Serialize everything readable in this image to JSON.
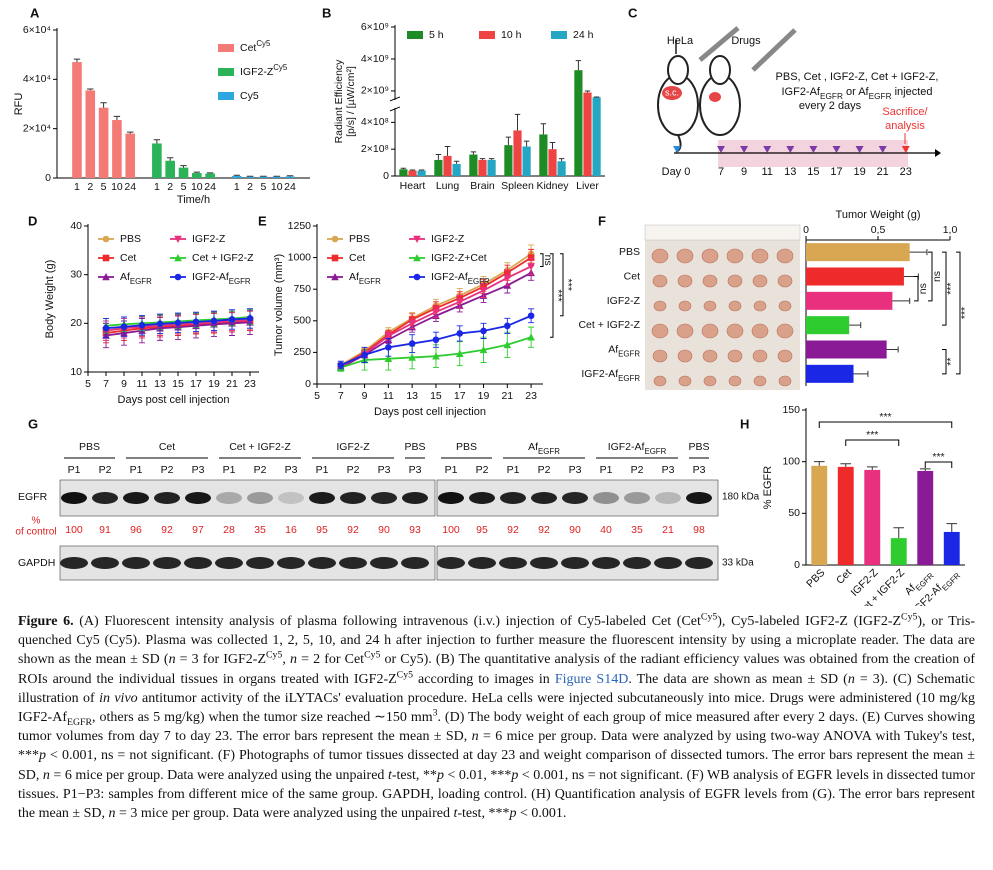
{
  "chart_data": [
    {
      "panel": "A",
      "type": "bar",
      "grouping": "series",
      "y_label": "RFU",
      "x_label": "Time/h",
      "categories": [
        "1",
        "2",
        "5",
        "10",
        "24"
      ],
      "series": [
        {
          "name": "Cet",
          "name_sup": "Cy5",
          "color": "#f47a76",
          "values": [
            47000,
            35500,
            28500,
            23500,
            18000
          ],
          "errors": [
            1200,
            600,
            2000,
            1500,
            600
          ]
        },
        {
          "name": "IGF2-Z",
          "name_sup": "Cy5",
          "color": "#2bb35a",
          "values": [
            14000,
            7000,
            4200,
            2000,
            1800
          ],
          "errors": [
            1500,
            1200,
            800,
            400,
            300
          ]
        },
        {
          "name": "Cy5",
          "color": "#2ea6df",
          "values": [
            800,
            500,
            500,
            500,
            600
          ],
          "errors": [
            300,
            200,
            200,
            200,
            300
          ]
        }
      ],
      "ylim": [
        0,
        60000
      ],
      "yticks": [
        0,
        {
          "value": 20000,
          "label": "2×10⁴"
        },
        {
          "value": 40000,
          "label": "4×10⁴"
        },
        {
          "value": 60000,
          "label": "6×10⁴"
        }
      ],
      "legend": "upper right"
    },
    {
      "panel": "B",
      "type": "bar",
      "grouping": "category",
      "y_label": [
        "Radiant Efficiency",
        "[p/s] / [µW/cm²]"
      ],
      "categories": [
        "Heart",
        "Lung",
        "Brain",
        "Spleen",
        "Kidney",
        "Liver"
      ],
      "series": [
        {
          "name": "5 h",
          "color": "#1e8c24",
          "values": [
            50000000,
            120000000,
            160000000,
            230000000,
            310000000,
            3300000000
          ],
          "errors": [
            8000000,
            40000000,
            20000000,
            60000000,
            80000000,
            600000000
          ]
        },
        {
          "name": "10 h",
          "color": "#ee4444",
          "values": [
            40000000,
            150000000,
            120000000,
            340000000,
            200000000,
            1900000000
          ],
          "errors": [
            5000000,
            70000000,
            10000000,
            120000000,
            50000000,
            100000000
          ]
        },
        {
          "name": "24 h",
          "color": "#25a7c4",
          "values": [
            40000000,
            90000000,
            120000000,
            220000000,
            110000000,
            1600000000
          ],
          "errors": [
            5000000,
            20000000,
            10000000,
            40000000,
            20000000,
            20000000
          ]
        }
      ],
      "ylim": [
        0,
        6000000000
      ],
      "ybreak": [
        500000000,
        1500000000
      ],
      "yticks": [
        0,
        {
          "value": 200000000,
          "label": "2×10⁸"
        },
        {
          "value": 400000000,
          "label": "4×10⁸"
        },
        {
          "value": 2000000000,
          "label": "2×10⁹"
        },
        {
          "value": 4000000000,
          "label": "4×10⁹"
        },
        {
          "value": 6000000000,
          "label": "6×10⁹"
        }
      ],
      "legend": "top"
    },
    {
      "panel": "D",
      "type": "line",
      "x_label": "Days post cell injection",
      "y_label": "Body Weight (g)",
      "x": [
        7,
        9,
        11,
        13,
        15,
        17,
        19,
        21,
        23
      ],
      "xlim": [
        5,
        24
      ],
      "xticks": [
        5,
        7,
        9,
        11,
        13,
        15,
        17,
        19,
        21,
        23
      ],
      "ylim": [
        10,
        40
      ],
      "yticks": [
        10,
        20,
        30,
        40
      ],
      "legend": "upper left",
      "series": [
        {
          "name": "PBS",
          "color": "#d9a752",
          "marker": "circle",
          "values": [
            18.5,
            19,
            19.5,
            19.8,
            20,
            20.2,
            20.5,
            20.5,
            20.8
          ],
          "errors": [
            2,
            2,
            2,
            2,
            2,
            2,
            2,
            2,
            2
          ]
        },
        {
          "name": "Cet",
          "color": "#ee2a2a",
          "marker": "square",
          "values": [
            18,
            18.5,
            19,
            19.2,
            19.5,
            19.8,
            20,
            20.2,
            20.5
          ],
          "errors": [
            2,
            2,
            2,
            2,
            2,
            2,
            2,
            2,
            2
          ]
        },
        {
          "name": "Af",
          "name_sub": "EGFR",
          "color": "#8b1a96",
          "marker": "triangle",
          "values": [
            17.5,
            18,
            18.5,
            19,
            19.2,
            19.5,
            19.8,
            20,
            20.2
          ],
          "errors": [
            2.5,
            2.5,
            2.5,
            2.5,
            2.5,
            2.5,
            2.5,
            2.5,
            2.5
          ]
        },
        {
          "name": "IGF2-Z",
          "color": "#e8307e",
          "marker": "triangle-down",
          "values": [
            18.5,
            19,
            19.3,
            19.5,
            19.8,
            20,
            20.2,
            20.5,
            20.6
          ],
          "errors": [
            2,
            2,
            2,
            2,
            2,
            2,
            2,
            2,
            2
          ]
        },
        {
          "name": "Cet + IGF2-Z",
          "color": "#2ecc2e",
          "marker": "triangle",
          "values": [
            19.5,
            19.8,
            20,
            20.2,
            20.4,
            20.6,
            20.8,
            21,
            21.3
          ],
          "errors": [
            1.5,
            1.5,
            1.5,
            1.5,
            1.5,
            1.5,
            1.5,
            1.5,
            1.5
          ]
        },
        {
          "name": "IGF2-Af",
          "name_sub": "EGFR",
          "color": "#1a28e6",
          "marker": "circle",
          "values": [
            19,
            19.3,
            19.6,
            19.9,
            20.1,
            20.3,
            20.5,
            20.8,
            21
          ],
          "errors": [
            2,
            2,
            2,
            2,
            2,
            2,
            2,
            2,
            2
          ]
        }
      ]
    },
    {
      "panel": "E",
      "type": "line",
      "x_label": "Days post cell injection",
      "y_label": "Tumor volume (mm³)",
      "x": [
        7,
        9,
        11,
        13,
        15,
        17,
        19,
        21,
        23
      ],
      "xlim": [
        5,
        24
      ],
      "xticks": [
        5,
        7,
        9,
        11,
        13,
        15,
        17,
        19,
        21,
        23
      ],
      "ylim": [
        0,
        1250
      ],
      "yticks": [
        0,
        250,
        500,
        750,
        1000,
        1250
      ],
      "legend": "upper left",
      "annotations": [
        "ns",
        "***",
        "***"
      ],
      "series": [
        {
          "name": "PBS",
          "color": "#d9a752",
          "marker": "circle",
          "values": [
            150,
            260,
            410,
            520,
            620,
            700,
            790,
            900,
            1030
          ],
          "errors": [
            20,
            25,
            35,
            45,
            50,
            55,
            60,
            60,
            70
          ]
        },
        {
          "name": "Cet",
          "color": "#ee2a2a",
          "marker": "square",
          "values": [
            140,
            250,
            390,
            510,
            600,
            680,
            770,
            880,
            1000
          ],
          "errors": [
            20,
            25,
            35,
            45,
            50,
            50,
            55,
            60,
            65
          ]
        },
        {
          "name": "Af",
          "name_sub": "EGFR",
          "color": "#8b1a96",
          "marker": "triangle",
          "values": [
            130,
            230,
            350,
            450,
            540,
            620,
            700,
            780,
            880
          ],
          "errors": [
            15,
            25,
            30,
            40,
            45,
            50,
            55,
            60,
            60
          ]
        },
        {
          "name": "IGF2-Z",
          "color": "#e8307e",
          "marker": "triangle-down",
          "values": [
            140,
            240,
            380,
            480,
            570,
            650,
            740,
            840,
            930
          ],
          "errors": [
            20,
            25,
            35,
            40,
            45,
            50,
            55,
            60,
            65
          ]
        },
        {
          "name": "IGF2-Z+Cet",
          "color": "#2ecc2e",
          "marker": "triangle",
          "values": [
            130,
            190,
            200,
            210,
            220,
            240,
            270,
            310,
            370
          ],
          "errors": [
            30,
            80,
            90,
            90,
            90,
            95,
            100,
            100,
            80
          ]
        },
        {
          "name": "IGF2-Af",
          "name_sub": "EGFR",
          "color": "#1a28e6",
          "marker": "circle",
          "values": [
            150,
            230,
            290,
            320,
            350,
            400,
            420,
            460,
            540
          ],
          "errors": [
            30,
            60,
            70,
            70,
            60,
            60,
            60,
            60,
            55
          ]
        }
      ]
    },
    {
      "panel": "F",
      "type": "barh",
      "title": "Tumor Weight (g)",
      "categories": [
        "PBS",
        "Cet",
        "IGF2-Z",
        "Cet + IGF2-Z",
        "Af",
        "IGF2-Af"
      ],
      "category_subs": [
        null,
        null,
        null,
        null,
        "EGFR",
        "EGFR"
      ],
      "values": [
        0.72,
        0.68,
        0.6,
        0.3,
        0.56,
        0.33
      ],
      "errors": [
        0.12,
        0.1,
        0.12,
        0.08,
        0.08,
        0.1
      ],
      "colors": [
        "#d9a752",
        "#ee2a2a",
        "#e8307e",
        "#2ecc2e",
        "#8b1a96",
        "#1a28e6"
      ],
      "xlim": [
        0,
        1
      ],
      "xticks": [
        0,
        {
          "value": 0.5,
          "label": "0,5"
        },
        {
          "value": 1,
          "label": "1,0"
        }
      ],
      "annotations": [
        "ns",
        "ns",
        "***",
        "**",
        "***"
      ]
    },
    {
      "panel": "H",
      "type": "bar",
      "y_label": "% EGFR",
      "categories": [
        "PBS",
        "Cet",
        "IGF2-Z",
        "Cet + IGF2-Z",
        "Af",
        "IGF2-Af"
      ],
      "category_subs": [
        null,
        null,
        null,
        null,
        "EGFR",
        "EGFR"
      ],
      "values": [
        96,
        95,
        92,
        26,
        91,
        32
      ],
      "errors": [
        4,
        3,
        3,
        10,
        2,
        8
      ],
      "colors": [
        "#d9a752",
        "#ee2a2a",
        "#e8307e",
        "#2ecc2e",
        "#8b1a96",
        "#1a28e6"
      ],
      "ylim": [
        0,
        150
      ],
      "yticks": [
        0,
        50,
        100,
        150
      ],
      "annotations": [
        "***",
        "***",
        "***"
      ]
    }
  ],
  "diagram": {
    "panel": "C",
    "cells": "HeLa",
    "drugs": "Drugs",
    "injection": "s.c.",
    "treatment_line1": "PBS, Cet , IGF2-Z, Cet + IGF2-Z,",
    "treatment_line2": [
      {
        "t": "IGF2-Af"
      },
      {
        "t": "EGFR",
        "f": "sub"
      },
      {
        "t": " or Af"
      },
      {
        "t": "EGFR",
        "f": "sub"
      },
      {
        "t": " injected"
      }
    ],
    "treatment_line3": "every 2 days",
    "endpoint": [
      "Sacrifice/",
      "analysis"
    ],
    "start": "Day 0",
    "days": [
      7,
      9,
      11,
      13,
      15,
      17,
      19,
      21,
      23
    ]
  },
  "blot": {
    "panel": "G",
    "rows": [
      "EGFR",
      "GAPDH"
    ],
    "sizes": [
      "180 kDa",
      "33 kDa"
    ],
    "percent_label": [
      "%",
      "of control"
    ],
    "groups": [
      {
        "label": "PBS",
        "membrane": 0,
        "lanes": [
          "P1",
          "P2"
        ],
        "percents": [
          100,
          91
        ]
      },
      {
        "label": "Cet",
        "membrane": 0,
        "lanes": [
          "P1",
          "P2",
          "P3"
        ],
        "percents": [
          96,
          92,
          97
        ]
      },
      {
        "label": "Cet + IGF2-Z",
        "membrane": 0,
        "lanes": [
          "P1",
          "P2",
          "P3"
        ],
        "percents": [
          28,
          35,
          16
        ]
      },
      {
        "label": "IGF2-Z",
        "membrane": 0,
        "lanes": [
          "P1",
          "P2",
          "P3"
        ],
        "percents": [
          95,
          92,
          90
        ]
      },
      {
        "label": "PBS",
        "membrane": 0,
        "lanes": [
          "P3"
        ],
        "percents": [
          93
        ]
      },
      {
        "label": "PBS",
        "membrane": 1,
        "lanes": [
          "P1",
          "P2"
        ],
        "percents": [
          100,
          95
        ]
      },
      {
        "label": "Af",
        "sub": "EGFR",
        "membrane": 1,
        "lanes": [
          "P1",
          "P2",
          "P3"
        ],
        "percents": [
          92,
          92,
          90
        ]
      },
      {
        "label": "IGF2-Af",
        "sub": "EGFR",
        "membrane": 1,
        "lanes": [
          "P1",
          "P2",
          "P3"
        ],
        "percents": [
          40,
          35,
          21
        ]
      },
      {
        "label": "PBS",
        "membrane": 1,
        "lanes": [
          "P3"
        ],
        "percents": [
          98
        ]
      }
    ]
  },
  "figure": {
    "caption": [
      {
        "t": "Figure 6.",
        "f": "b"
      },
      {
        "t": " (A) Fluorescent intensity analysis of plasma following intravenous (i.v.) injection of Cy5-labeled Cet (Cet"
      },
      {
        "t": "Cy5",
        "f": "sup"
      },
      {
        "t": "), Cy5-labeled IGF2-Z (IGF2-Z"
      },
      {
        "t": "Cy5",
        "f": "sup"
      },
      {
        "t": "), or Tris-quenched Cy5 (Cy5). Plasma was collected 1, 2, 5, 10, and 24 h after injection to further measure the fluorescent intensity by using a microplate reader. The data are shown as the mean ± SD ("
      },
      {
        "t": "n",
        "f": "i"
      },
      {
        "t": " = 3 for IGF2-Z"
      },
      {
        "t": "Cy5",
        "f": "sup"
      },
      {
        "t": ", "
      },
      {
        "t": "n",
        "f": "i"
      },
      {
        "t": " = 2 for Cet"
      },
      {
        "t": "Cy5",
        "f": "sup"
      },
      {
        "t": " or Cy5). (B) The quantitative analysis of the radiant efficiency values was obtained from the creation of ROIs around the individual tissues in organs treated with IGF2-Z"
      },
      {
        "t": "Cy5",
        "f": "sup"
      },
      {
        "t": " according to images in "
      },
      {
        "t": "Figure S14D",
        "f": "link"
      },
      {
        "t": ". The data are shown as mean ± SD ("
      },
      {
        "t": "n",
        "f": "i"
      },
      {
        "t": " = 3). (C) Schematic illustration of "
      },
      {
        "t": "in vivo",
        "f": "i"
      },
      {
        "t": " antitumor activity of the iLYTACs' evaluation procedure. HeLa cells were injected subcutaneously into mice. Drugs were administered (10 mg/kg IGF2-Af"
      },
      {
        "t": "EGFR",
        "f": "sub"
      },
      {
        "t": ", others as 5 mg/kg) when the tumor size reached ∼150 mm"
      },
      {
        "t": "3",
        "f": "sup"
      },
      {
        "t": ". (D) The body weight of each group of mice measured after every 2 days. (E) Curves showing tumor volumes from day 7 to day 23. The error bars represent the mean ± SD, "
      },
      {
        "t": "n",
        "f": "i"
      },
      {
        "t": " = 6 mice per group. Data were analyzed by using two-way ANOVA with Tukey's test, ***"
      },
      {
        "t": "p",
        "f": "i"
      },
      {
        "t": " < 0.001, ns = not significant. (F) Photographs of tumor tissues dissected at day 23 and weight comparison of dissected tumors. The error bars represent the mean ± SD, "
      },
      {
        "t": "n",
        "f": "i"
      },
      {
        "t": " = 6 mice per group. Data were analyzed using the unpaired "
      },
      {
        "t": "t",
        "f": "i"
      },
      {
        "t": "-test, **"
      },
      {
        "t": "p",
        "f": "i"
      },
      {
        "t": " < 0.01, ***"
      },
      {
        "t": "p",
        "f": "i"
      },
      {
        "t": " < 0.001, ns = not significant. (F) WB analysis of EGFR levels in dissected tumor tissues. P1−P3: samples from different mice of the same group. GAPDH, loading control. (H) Quantification analysis of EGFR levels from (G). The error bars represent the mean ± SD, "
      },
      {
        "t": "n",
        "f": "i"
      },
      {
        "t": " = 3 mice per group. Data were analyzed using the unpaired "
      },
      {
        "t": "t",
        "f": "i"
      },
      {
        "t": "-test, ***"
      },
      {
        "t": "p",
        "f": "i"
      },
      {
        "t": " < 0.001."
      }
    ]
  }
}
